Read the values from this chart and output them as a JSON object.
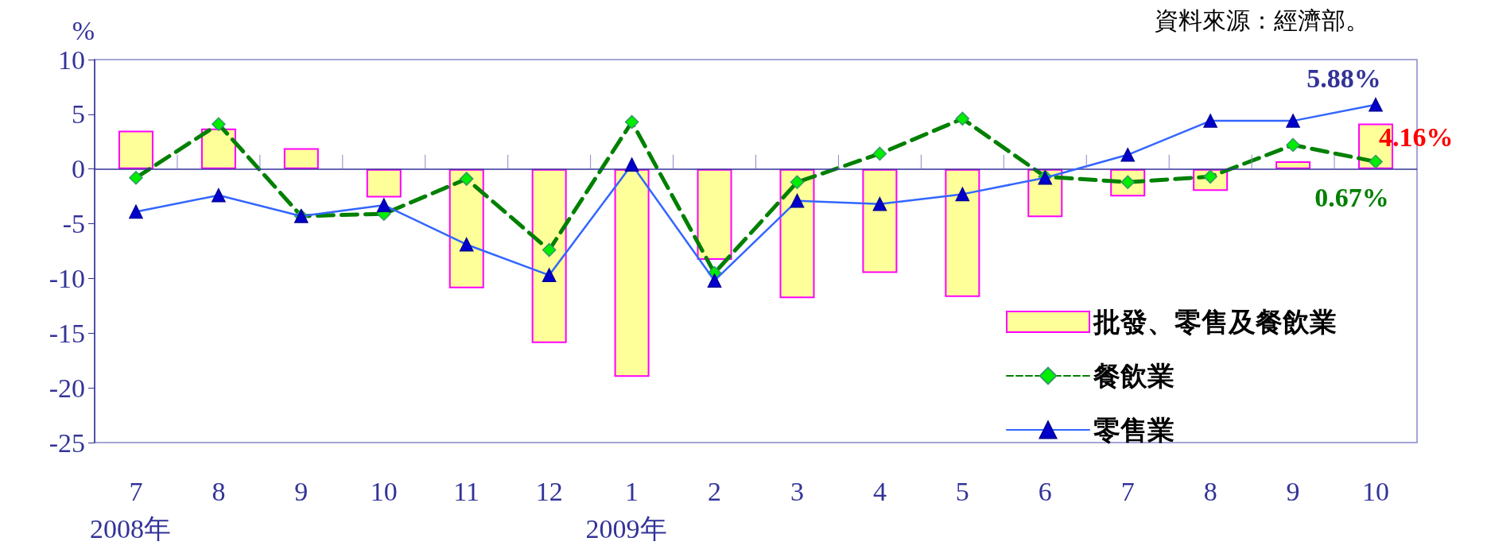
{
  "chart_data": {
    "type": "bar",
    "ylabel": "%",
    "categories": [
      "7",
      "8",
      "9",
      "10",
      "11",
      "12",
      "1",
      "2",
      "3",
      "4",
      "5",
      "6",
      "7",
      "8",
      "9",
      "10"
    ],
    "series": [
      {
        "name": "批發、零售及餐飲業",
        "color": "#ffff99",
        "values": [
          3.5,
          3.7,
          1.9,
          -2.6,
          -10.9,
          -15.9,
          -19.0,
          -8.3,
          -11.8,
          -9.5,
          -11.7,
          -4.4,
          -2.5,
          -2.0,
          0.7,
          4.16
        ],
        "value_labels": [
          null,
          null,
          null,
          null,
          null,
          null,
          null,
          null,
          null,
          null,
          null,
          null,
          null,
          null,
          null,
          "4.16%"
        ]
      },
      {
        "name": "餐飲業",
        "type": "line",
        "color": "#008000",
        "marker": "diamond",
        "line_style": "dashed",
        "values": [
          -0.8,
          4.1,
          -4.3,
          -4.1,
          -0.9,
          -7.4,
          4.3,
          -9.5,
          -1.2,
          1.4,
          4.6,
          -0.7,
          -1.2,
          -0.7,
          2.2,
          0.67
        ],
        "value_labels": [
          null,
          null,
          null,
          null,
          null,
          null,
          null,
          null,
          null,
          null,
          null,
          null,
          null,
          null,
          null,
          "0.67%"
        ]
      },
      {
        "name": "零售業",
        "type": "line",
        "color": "#3366ff",
        "marker": "triangle",
        "line_style": "solid",
        "values": [
          -3.9,
          -2.4,
          -4.3,
          -3.3,
          -6.9,
          -9.7,
          0.4,
          -10.2,
          -2.9,
          -3.2,
          -2.3,
          -0.8,
          1.3,
          4.4,
          4.4,
          5.88
        ],
        "value_labels": [
          null,
          null,
          null,
          null,
          null,
          null,
          null,
          null,
          null,
          null,
          null,
          null,
          null,
          null,
          null,
          "5.88%"
        ]
      }
    ],
    "ref_lines": [
      {
        "axis": "y",
        "value": 0,
        "color": "#333399"
      }
    ],
    "ylim": [
      -25,
      10
    ],
    "yticks": [
      -25,
      -20,
      -15,
      -10,
      -5,
      0,
      5,
      10
    ],
    "grid": false,
    "legend": "bottom right",
    "annotations": [
      "資料來源：經濟部。",
      "2008年",
      "2009年"
    ]
  }
}
